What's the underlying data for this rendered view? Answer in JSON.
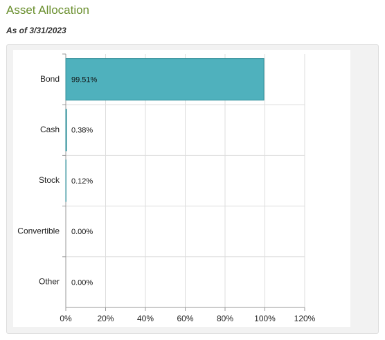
{
  "chart_data": {
    "type": "hbar",
    "title": "Asset Allocation",
    "subtitle": "As of 3/31/2023",
    "categories": [
      "Bond",
      "Cash",
      "Stock",
      "Convertible",
      "Other"
    ],
    "values": [
      99.51,
      0.38,
      0.12,
      0,
      0
    ],
    "value_labels": [
      "99.51%",
      "0.38%",
      "0.12%",
      "0.00%",
      "0.00%"
    ],
    "color": "#4fb1bd",
    "xlim": [
      0,
      120
    ],
    "xticks": [
      {
        "value": 0,
        "label": "0%"
      },
      {
        "value": 20,
        "label": "20%"
      },
      {
        "value": 40,
        "label": "40%"
      },
      {
        "value": 60,
        "label": "60%"
      },
      {
        "value": 80,
        "label": "80%"
      },
      {
        "value": 100,
        "label": "100%"
      },
      {
        "value": 120,
        "label": "120%"
      }
    ],
    "grid": true
  }
}
